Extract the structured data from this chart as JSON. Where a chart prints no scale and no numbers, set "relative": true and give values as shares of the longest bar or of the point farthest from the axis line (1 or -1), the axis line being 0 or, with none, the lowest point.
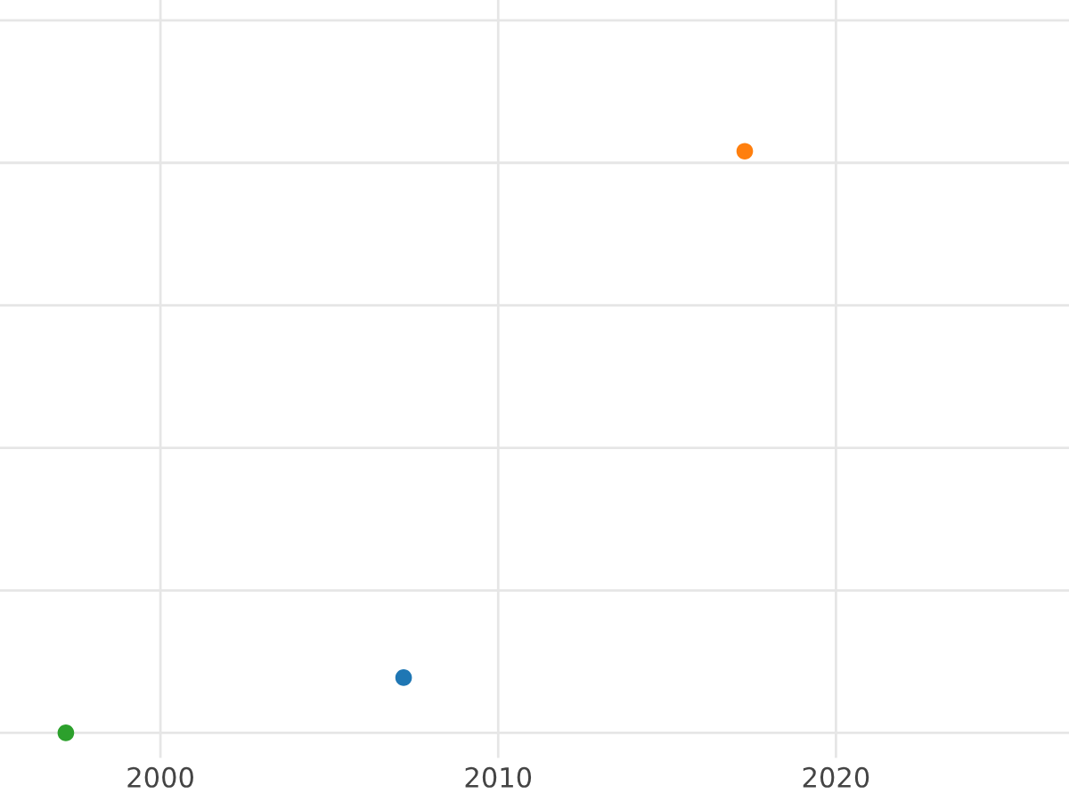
{
  "chart_data": {
    "type": "scatter",
    "relative": true,
    "x": [
      1997.2,
      2007.2,
      2017.3
    ],
    "values": [
      0,
      0.095,
      1
    ],
    "colors": [
      "#2ca02c",
      "#1f77b4",
      "#ff7f0e"
    ],
    "xlim": [
      1995.25,
      2026.9
    ],
    "xticks": [
      2000,
      2010,
      2020
    ],
    "grid": true,
    "marker": "circle",
    "tick_labels": "x"
  }
}
